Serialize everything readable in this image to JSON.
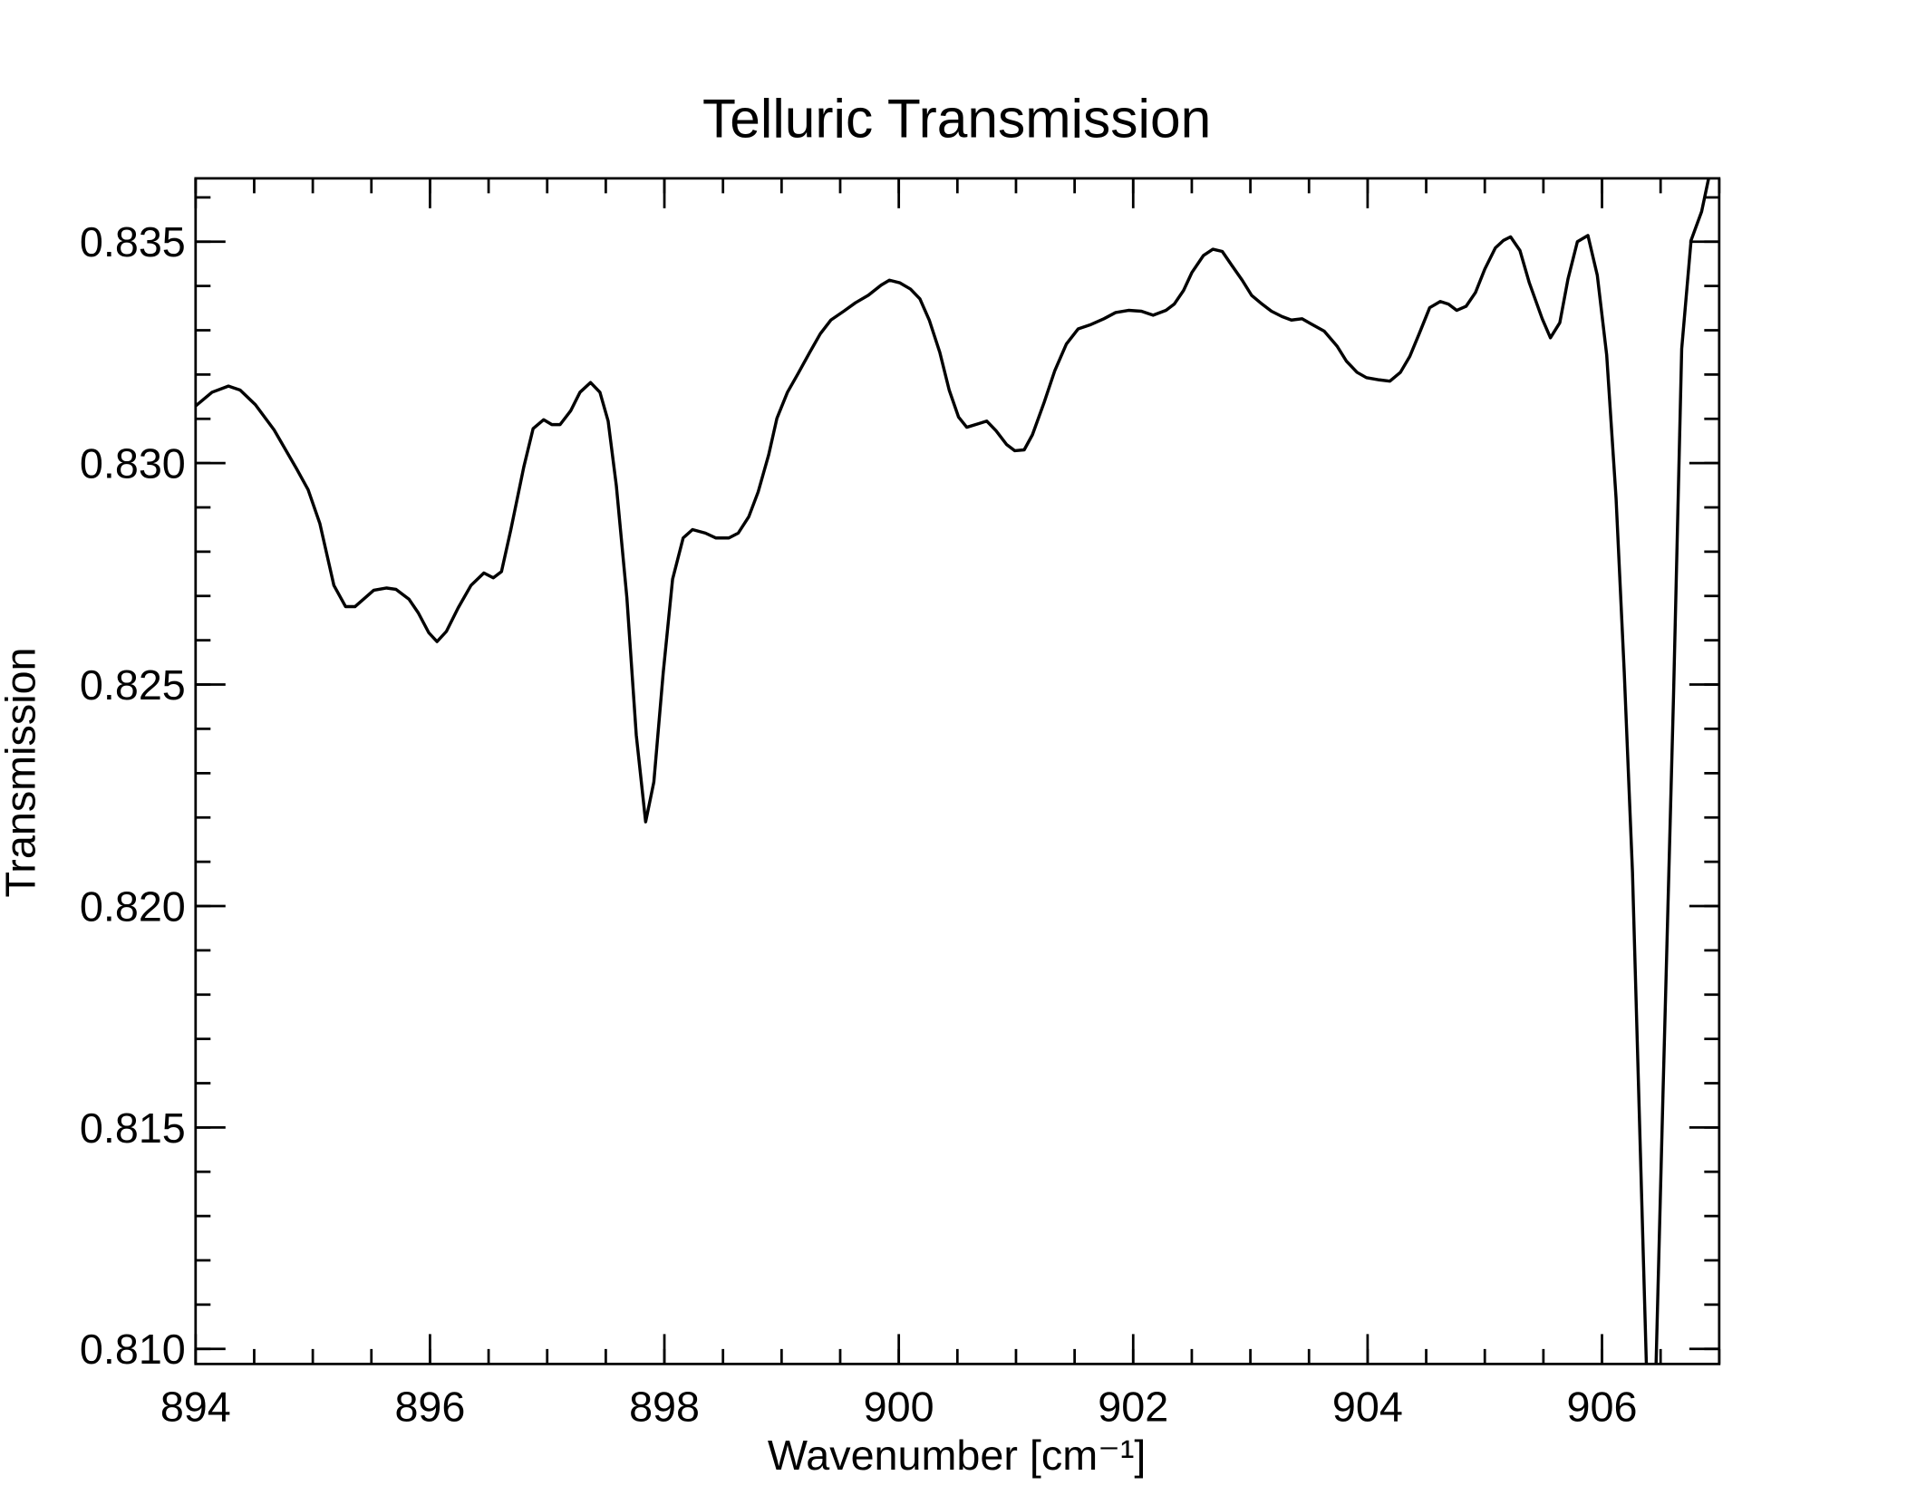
{
  "chart_data": {
    "type": "line",
    "title": "Telluric Transmission",
    "xlabel": "Wavenumber [cm⁻¹]",
    "ylabel": "Transmission",
    "color": "#000000",
    "xlim": [
      894,
      907
    ],
    "ylim": [
      0.80966,
      0.83643
    ],
    "xticks": [
      894,
      896,
      898,
      900,
      902,
      904,
      906
    ],
    "yticks": [
      {
        "value": 0.81,
        "label": "0.810"
      },
      0.815,
      {
        "value": 0.82,
        "label": "0.820"
      },
      0.825,
      {
        "value": 0.83,
        "label": "0.830"
      },
      0.835
    ],
    "xminor": 0.5,
    "yminor": 0.001,
    "x": [
      894.0,
      894.14,
      894.28,
      894.38,
      894.51,
      894.67,
      894.86,
      894.96,
      895.06,
      895.18,
      895.28,
      895.36,
      895.52,
      895.63,
      895.71,
      895.82,
      895.9,
      895.99,
      896.06,
      896.14,
      896.24,
      896.35,
      896.46,
      896.54,
      896.61,
      896.69,
      896.8,
      896.88,
      896.97,
      897.04,
      897.11,
      897.2,
      897.28,
      897.37,
      897.45,
      897.52,
      897.59,
      897.68,
      897.76,
      897.84,
      897.91,
      897.99,
      898.07,
      898.16,
      898.24,
      898.35,
      898.44,
      898.55,
      898.63,
      898.72,
      898.8,
      898.89,
      898.96,
      899.05,
      899.14,
      899.24,
      899.33,
      899.42,
      899.53,
      899.63,
      899.74,
      899.85,
      899.92,
      900.01,
      900.1,
      900.18,
      900.26,
      900.35,
      900.43,
      900.51,
      900.58,
      900.68,
      900.75,
      900.83,
      900.92,
      900.99,
      901.07,
      901.14,
      901.24,
      901.33,
      901.43,
      901.53,
      901.63,
      901.75,
      901.85,
      901.96,
      902.07,
      902.17,
      902.28,
      902.35,
      902.43,
      902.5,
      902.6,
      902.68,
      902.76,
      902.84,
      902.93,
      903.01,
      903.1,
      903.18,
      903.27,
      903.35,
      903.44,
      903.52,
      903.63,
      903.74,
      903.82,
      903.91,
      903.99,
      904.1,
      904.19,
      904.28,
      904.36,
      904.44,
      904.53,
      904.62,
      904.69,
      904.76,
      904.84,
      904.92,
      905.0,
      905.09,
      905.16,
      905.22,
      905.3,
      905.38,
      905.49,
      905.56,
      905.64,
      905.71,
      905.79,
      905.88,
      905.96,
      906.04,
      906.12,
      906.19,
      906.26,
      906.32,
      906.38,
      906.46,
      906.52,
      906.61,
      906.68,
      906.76,
      906.85,
      906.91
    ],
    "values": [
      0.83129,
      0.8316,
      0.83174,
      0.83165,
      0.83132,
      0.83075,
      0.82988,
      0.8294,
      0.82864,
      0.82724,
      0.82676,
      0.82676,
      0.82713,
      0.82718,
      0.82715,
      0.82693,
      0.82662,
      0.82617,
      0.82597,
      0.8262,
      0.82673,
      0.82724,
      0.82752,
      0.82741,
      0.82755,
      0.8285,
      0.82991,
      0.83078,
      0.83098,
      0.83087,
      0.83087,
      0.83118,
      0.8316,
      0.83182,
      0.8316,
      0.83095,
      0.82949,
      0.82696,
      0.82386,
      0.8219,
      0.8228,
      0.82527,
      0.82738,
      0.82831,
      0.8285,
      0.82842,
      0.82831,
      0.82831,
      0.82842,
      0.82879,
      0.82935,
      0.83019,
      0.83101,
      0.8316,
      0.83202,
      0.8325,
      0.83292,
      0.83323,
      0.83343,
      0.83362,
      0.83379,
      0.83402,
      0.83413,
      0.83407,
      0.83393,
      0.83371,
      0.83323,
      0.8325,
      0.83165,
      0.83104,
      0.83081,
      0.83089,
      0.83095,
      0.83073,
      0.83042,
      0.83028,
      0.8303,
      0.83064,
      0.83137,
      0.83208,
      0.83269,
      0.83303,
      0.83312,
      0.83326,
      0.8334,
      0.83345,
      0.83343,
      0.83334,
      0.83345,
      0.83359,
      0.8339,
      0.8343,
      0.83469,
      0.83483,
      0.83478,
      0.83447,
      0.83413,
      0.83379,
      0.83359,
      0.83343,
      0.83331,
      0.83323,
      0.83326,
      0.83314,
      0.83298,
      0.83264,
      0.8323,
      0.83205,
      0.83193,
      0.83188,
      0.83185,
      0.83205,
      0.83241,
      0.83292,
      0.83351,
      0.83365,
      0.83359,
      0.83345,
      0.83354,
      0.83385,
      0.83438,
      0.83486,
      0.83503,
      0.83511,
      0.8348,
      0.83407,
      0.83326,
      0.83283,
      0.83317,
      0.83416,
      0.835,
      0.83514,
      0.83424,
      0.83244,
      0.82921,
      0.82527,
      0.82077,
      0.81515,
      0.80952,
      0.80952,
      0.81571,
      0.82471,
      0.83258,
      0.83503,
      0.83568,
      0.83643
    ]
  }
}
